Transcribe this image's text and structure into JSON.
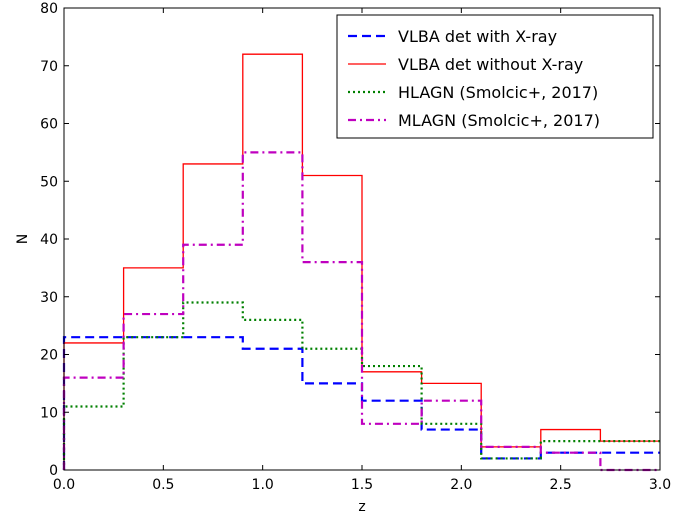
{
  "chart_data": {
    "type": "histogram",
    "xlabel": "z",
    "ylabel": "N",
    "xlim": [
      0.0,
      3.0
    ],
    "ylim": [
      0,
      80
    ],
    "xticks": [
      0.0,
      0.5,
      1.0,
      1.5,
      2.0,
      2.5,
      3.0
    ],
    "xtick_labels": [
      "0.0",
      "0.5",
      "1.0",
      "1.5",
      "2.0",
      "2.5",
      "3.0"
    ],
    "yticks": [
      0,
      10,
      20,
      30,
      40,
      50,
      60,
      70,
      80
    ],
    "ytick_labels": [
      "0",
      "10",
      "20",
      "30",
      "40",
      "50",
      "60",
      "70",
      "80"
    ],
    "grid": false,
    "legend_position": "top-right",
    "bin_edges": [
      0.0,
      0.3,
      0.6,
      0.9,
      1.2,
      1.5,
      1.8,
      2.1,
      2.4,
      2.7,
      3.0
    ],
    "series": [
      {
        "name": "VLBA det with X-ray",
        "color": "#0000ff",
        "style": "dashed",
        "values": [
          23,
          23,
          23,
          21,
          15,
          12,
          7,
          2,
          3,
          3
        ]
      },
      {
        "name": "VLBA det without X-ray",
        "color": "#ff0000",
        "style": "solid",
        "values": [
          22,
          35,
          53,
          72,
          51,
          17,
          15,
          4,
          7,
          5
        ]
      },
      {
        "name": "HLAGN (Smolcic+, 2017)",
        "color": "#008000",
        "style": "dotted",
        "values": [
          11,
          23,
          29,
          26,
          21,
          18,
          8,
          2,
          5,
          5
        ]
      },
      {
        "name": "MLAGN (Smolcic+, 2017)",
        "color": "#bf00bf",
        "style": "dashdot",
        "values": [
          16,
          27,
          39,
          55,
          36,
          8,
          12,
          4,
          3,
          0
        ]
      }
    ]
  }
}
